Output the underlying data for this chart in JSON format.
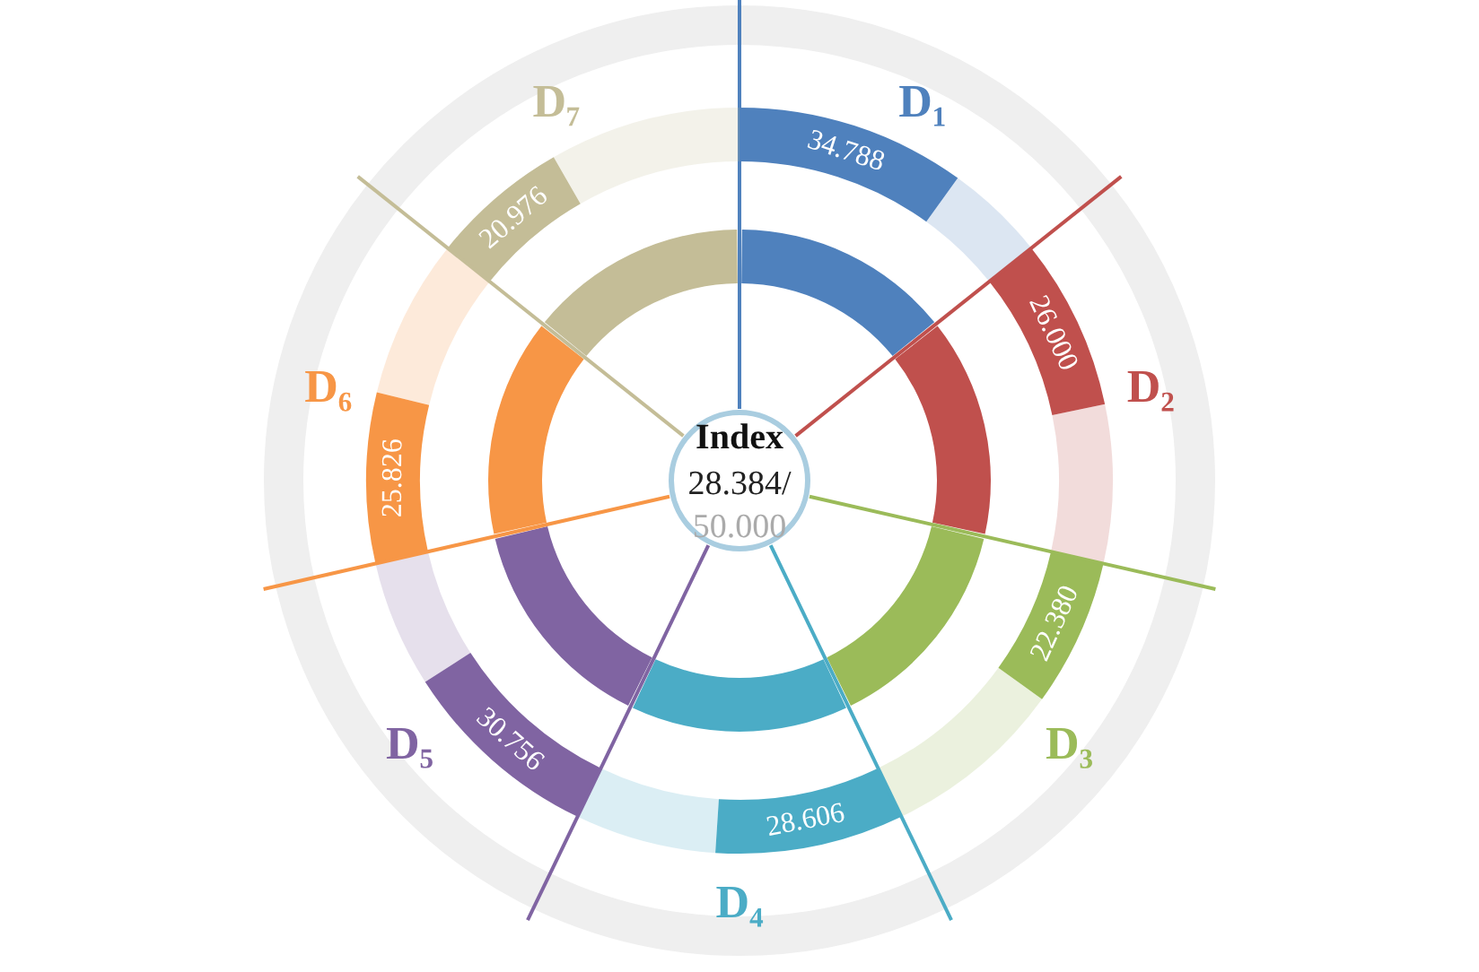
{
  "chart_data": {
    "type": "other",
    "title": "Index",
    "annotations": [
      "28.384/",
      "50.000"
    ],
    "categories": [
      "D₁",
      "D₂",
      "D₃",
      "D₄",
      "D₅",
      "D₆",
      "D₇"
    ],
    "values": [
      34.788,
      26.0,
      22.38,
      28.606,
      30.756,
      25.826,
      20.976
    ],
    "value_labels": [
      "34.788",
      "26.000",
      "22.380",
      "28.606",
      "30.756",
      "25.826",
      "20.976"
    ],
    "colors": [
      "#4f81bd",
      "#c0504d",
      "#9bbb59",
      "#4bacc6",
      "#8064a2",
      "#f79646",
      "#c4bd97"
    ]
  }
}
